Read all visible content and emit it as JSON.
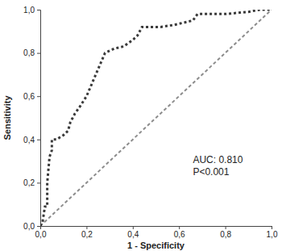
{
  "chart_data": {
    "type": "line",
    "x_label": "1 - Specificity",
    "y_label": "Sensitivity",
    "xlim": [
      0,
      1
    ],
    "ylim": [
      0,
      1
    ],
    "xticks": [
      {
        "value": 0,
        "label": "0,0"
      },
      {
        "value": 0.2,
        "label": "0,2"
      },
      {
        "value": 0.4,
        "label": "0,4"
      },
      {
        "value": 0.6,
        "label": "0,6"
      },
      {
        "value": 0.8,
        "label": "0,8"
      },
      {
        "value": 1,
        "label": "1,0"
      }
    ],
    "yticks": [
      {
        "value": 0,
        "label": "0,0"
      },
      {
        "value": 0.2,
        "label": "0,2"
      },
      {
        "value": 0.4,
        "label": "0,4"
      },
      {
        "value": 0.6,
        "label": "0,6"
      },
      {
        "value": 0.8,
        "label": "0,8"
      },
      {
        "value": 1,
        "label": "1,0"
      }
    ],
    "annotations": [
      "AUC: 0.810",
      "P<0.001"
    ],
    "series": [
      {
        "color": "#3a3a3a",
        "line_style": "dotted",
        "x": [
          0,
          0.01,
          0.02,
          0.03,
          0.03,
          0.04,
          0.05,
          0.05,
          0.07,
          0.1,
          0.12,
          0.13,
          0.15,
          0.17,
          0.2,
          0.22,
          0.24,
          0.26,
          0.28,
          0.32,
          0.36,
          0.4,
          0.42,
          0.44,
          0.52,
          0.58,
          0.66,
          0.68,
          0.8,
          0.9,
          0.95,
          1.0
        ],
        "values": [
          0,
          0.02,
          0.09,
          0.09,
          0.2,
          0.32,
          0.35,
          0.4,
          0.4,
          0.42,
          0.44,
          0.48,
          0.52,
          0.55,
          0.6,
          0.65,
          0.7,
          0.75,
          0.8,
          0.82,
          0.83,
          0.86,
          0.88,
          0.92,
          0.92,
          0.93,
          0.95,
          0.98,
          0.98,
          0.99,
          1.0,
          1.0
        ]
      },
      {
        "color": "#8c8c8c",
        "line_style": "dashed",
        "x": [
          0,
          1
        ],
        "values": [
          0,
          1
        ]
      }
    ]
  }
}
